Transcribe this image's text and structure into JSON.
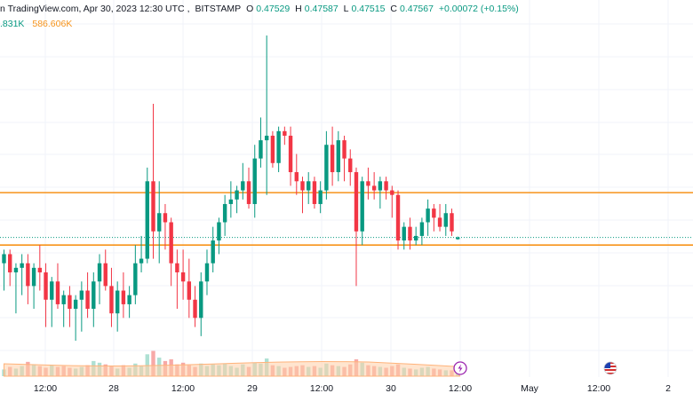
{
  "header": {
    "source": "n TradingView.com, Apr 30, 2023 12:30 UTC",
    "exchange": "BITSTAMP",
    "o_label": "O",
    "o_value": "0.47529",
    "h_label": "H",
    "h_value": "0.47587",
    "l_label": "L",
    "l_value": "0.47515",
    "c_label": "C",
    "c_value": "0.47567",
    "change": "+0.00072 (+0.15%)",
    "volume_a": ".831K",
    "volume_b": "586.606K"
  },
  "time_axis": [
    "12:00",
    "28",
    "12:00",
    "29",
    "12:00",
    "30",
    "12:00",
    "May",
    "12:00",
    "2"
  ],
  "colors": {
    "up": "#089981",
    "down": "#f23645",
    "vol_up": "#aee0d3",
    "vol_down": "#f7a9a7",
    "level": "#f7931a",
    "vol_ma": "#ffcfa8"
  },
  "levels": [
    0.4855,
    0.474
  ],
  "last_price": 0.47567,
  "icons": [
    "lightning-icon",
    "us-flag-icon"
  ],
  "chart_data": {
    "type": "candlestick",
    "candles": [
      [
        0.47,
        0.473,
        0.464,
        0.472
      ],
      [
        0.472,
        0.473,
        0.465,
        0.468
      ],
      [
        0.468,
        0.47,
        0.459,
        0.469
      ],
      [
        0.469,
        0.472,
        0.463,
        0.47
      ],
      [
        0.47,
        0.472,
        0.461,
        0.465
      ],
      [
        0.465,
        0.47,
        0.46,
        0.469
      ],
      [
        0.469,
        0.474,
        0.464,
        0.468
      ],
      [
        0.468,
        0.47,
        0.456,
        0.462
      ],
      [
        0.462,
        0.467,
        0.456,
        0.466
      ],
      [
        0.466,
        0.47,
        0.46,
        0.461
      ],
      [
        0.461,
        0.464,
        0.456,
        0.463
      ],
      [
        0.463,
        0.465,
        0.456,
        0.46
      ],
      [
        0.46,
        0.463,
        0.453,
        0.462
      ],
      [
        0.462,
        0.466,
        0.455,
        0.464
      ],
      [
        0.464,
        0.468,
        0.458,
        0.46
      ],
      [
        0.46,
        0.468,
        0.456,
        0.466
      ],
      [
        0.466,
        0.472,
        0.461,
        0.47
      ],
      [
        0.47,
        0.473,
        0.464,
        0.465
      ],
      [
        0.465,
        0.469,
        0.456,
        0.459
      ],
      [
        0.459,
        0.466,
        0.455,
        0.464
      ],
      [
        0.464,
        0.468,
        0.458,
        0.461
      ],
      [
        0.461,
        0.465,
        0.458,
        0.463
      ],
      [
        0.463,
        0.474,
        0.461,
        0.47
      ],
      [
        0.47,
        0.476,
        0.468,
        0.471
      ],
      [
        0.471,
        0.491,
        0.47,
        0.488
      ],
      [
        0.488,
        0.505,
        0.471,
        0.477
      ],
      [
        0.477,
        0.488,
        0.47,
        0.481
      ],
      [
        0.481,
        0.483,
        0.473,
        0.479
      ],
      [
        0.479,
        0.48,
        0.465,
        0.47
      ],
      [
        0.47,
        0.473,
        0.46,
        0.468
      ],
      [
        0.468,
        0.473,
        0.462,
        0.466
      ],
      [
        0.466,
        0.471,
        0.458,
        0.462
      ],
      [
        0.462,
        0.465,
        0.456,
        0.458
      ],
      [
        0.458,
        0.468,
        0.454,
        0.466
      ],
      [
        0.466,
        0.473,
        0.463,
        0.47
      ],
      [
        0.47,
        0.478,
        0.468,
        0.475
      ],
      [
        0.475,
        0.48,
        0.472,
        0.479
      ],
      [
        0.479,
        0.485,
        0.476,
        0.483
      ],
      [
        0.483,
        0.488,
        0.48,
        0.484
      ],
      [
        0.484,
        0.487,
        0.481,
        0.486
      ],
      [
        0.486,
        0.492,
        0.484,
        0.488
      ],
      [
        0.488,
        0.491,
        0.482,
        0.483
      ],
      [
        0.483,
        0.496,
        0.48,
        0.493
      ],
      [
        0.493,
        0.502,
        0.491,
        0.497
      ],
      [
        0.497,
        0.52,
        0.485,
        0.498
      ],
      [
        0.498,
        0.499,
        0.491,
        0.492
      ],
      [
        0.492,
        0.5,
        0.49,
        0.499
      ],
      [
        0.499,
        0.5,
        0.496,
        0.498
      ],
      [
        0.498,
        0.5,
        0.487,
        0.49
      ],
      [
        0.49,
        0.494,
        0.485,
        0.488
      ],
      [
        0.488,
        0.489,
        0.481,
        0.486
      ],
      [
        0.486,
        0.49,
        0.483,
        0.488
      ],
      [
        0.488,
        0.489,
        0.482,
        0.483
      ],
      [
        0.483,
        0.488,
        0.481,
        0.486
      ],
      [
        0.486,
        0.499,
        0.484,
        0.496
      ],
      [
        0.496,
        0.5,
        0.487,
        0.49
      ],
      [
        0.49,
        0.499,
        0.488,
        0.497
      ],
      [
        0.497,
        0.498,
        0.488,
        0.493
      ],
      [
        0.493,
        0.495,
        0.487,
        0.49
      ],
      [
        0.49,
        0.491,
        0.465,
        0.477
      ],
      [
        0.477,
        0.489,
        0.474,
        0.488
      ],
      [
        0.488,
        0.491,
        0.484,
        0.487
      ],
      [
        0.487,
        0.49,
        0.484,
        0.486
      ],
      [
        0.486,
        0.489,
        0.482,
        0.488
      ],
      [
        0.488,
        0.489,
        0.484,
        0.486
      ],
      [
        0.486,
        0.487,
        0.48,
        0.485
      ],
      [
        0.485,
        0.486,
        0.473,
        0.475
      ],
      [
        0.475,
        0.479,
        0.473,
        0.478
      ],
      [
        0.478,
        0.48,
        0.473,
        0.475
      ],
      [
        0.475,
        0.478,
        0.474,
        0.476
      ],
      [
        0.476,
        0.48,
        0.474,
        0.479
      ],
      [
        0.479,
        0.484,
        0.476,
        0.482
      ],
      [
        0.482,
        0.483,
        0.477,
        0.48
      ],
      [
        0.48,
        0.483,
        0.477,
        0.478
      ],
      [
        0.478,
        0.483,
        0.476,
        0.481
      ],
      [
        0.481,
        0.482,
        0.476,
        0.477
      ],
      [
        0.47529,
        0.47587,
        0.47515,
        0.47567
      ]
    ],
    "volume": [
      [
        0.8,
        1
      ],
      [
        1.1,
        0
      ],
      [
        0.9,
        1
      ],
      [
        1.2,
        1
      ],
      [
        1.7,
        0
      ],
      [
        1.4,
        1
      ],
      [
        1.2,
        0
      ],
      [
        1.0,
        0
      ],
      [
        1.3,
        1
      ],
      [
        1.1,
        0
      ],
      [
        1.2,
        0
      ],
      [
        1.0,
        0
      ],
      [
        0.9,
        1
      ],
      [
        1.1,
        1
      ],
      [
        1.3,
        0
      ],
      [
        1.8,
        1
      ],
      [
        1.6,
        1
      ],
      [
        1.4,
        0
      ],
      [
        1.2,
        0
      ],
      [
        0.9,
        1
      ],
      [
        1.3,
        0
      ],
      [
        1.0,
        1
      ],
      [
        1.5,
        1
      ],
      [
        1.2,
        1
      ],
      [
        2.6,
        1
      ],
      [
        3.0,
        0
      ],
      [
        2.2,
        1
      ],
      [
        1.8,
        0
      ],
      [
        2.0,
        0
      ],
      [
        1.4,
        0
      ],
      [
        1.6,
        0
      ],
      [
        1.3,
        0
      ],
      [
        1.1,
        0
      ],
      [
        1.5,
        1
      ],
      [
        1.2,
        1
      ],
      [
        1.4,
        1
      ],
      [
        1.3,
        1
      ],
      [
        1.5,
        1
      ],
      [
        1.2,
        1
      ],
      [
        1.0,
        1
      ],
      [
        1.4,
        1
      ],
      [
        1.1,
        0
      ],
      [
        1.6,
        1
      ],
      [
        1.5,
        1
      ],
      [
        2.1,
        1
      ],
      [
        1.3,
        0
      ],
      [
        1.2,
        1
      ],
      [
        1.0,
        0
      ],
      [
        1.1,
        0
      ],
      [
        1.2,
        0
      ],
      [
        1.3,
        0
      ],
      [
        1.1,
        1
      ],
      [
        1.2,
        0
      ],
      [
        1.0,
        1
      ],
      [
        1.5,
        1
      ],
      [
        1.3,
        0
      ],
      [
        1.2,
        1
      ],
      [
        1.1,
        0
      ],
      [
        1.4,
        0
      ],
      [
        2.0,
        0
      ],
      [
        1.6,
        1
      ],
      [
        1.3,
        0
      ],
      [
        1.2,
        0
      ],
      [
        1.1,
        1
      ],
      [
        1.0,
        0
      ],
      [
        1.2,
        0
      ],
      [
        1.4,
        0
      ],
      [
        1.0,
        1
      ],
      [
        0.9,
        0
      ],
      [
        0.8,
        1
      ],
      [
        1.0,
        1
      ],
      [
        1.1,
        1
      ],
      [
        0.9,
        0
      ],
      [
        0.8,
        0
      ],
      [
        0.7,
        1
      ],
      [
        0.7,
        0
      ],
      [
        0.4,
        1
      ]
    ]
  }
}
